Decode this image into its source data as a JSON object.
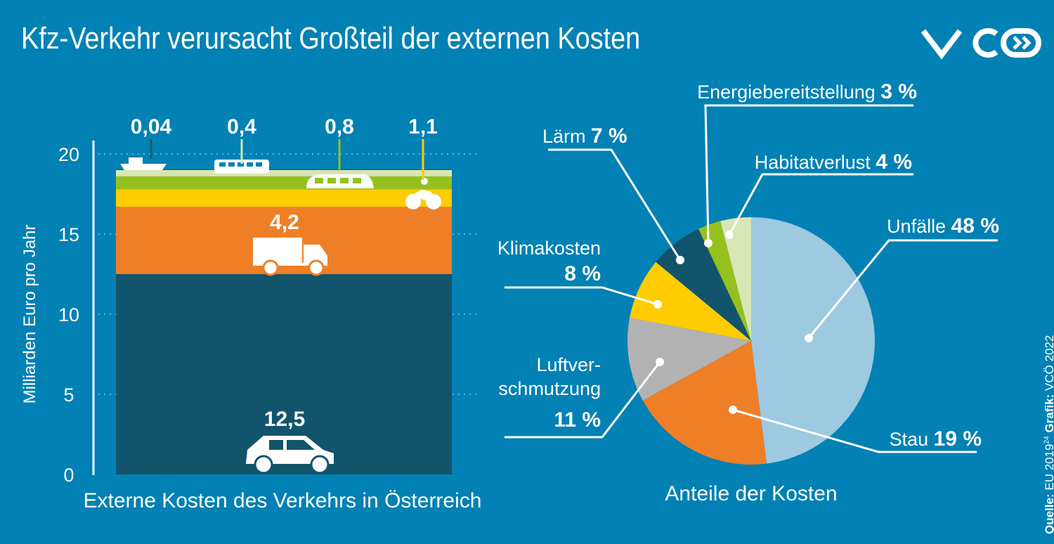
{
  "title": "Kfz-Verkehr verursacht Großteil der externen Kosten",
  "logo": "VCÖ",
  "source": {
    "label": "Quelle:",
    "text": "EU 2019",
    "sup": "24",
    "grafik_label": "Grafik:",
    "grafik": "VCÖ 2022"
  },
  "chart_data": [
    {
      "type": "bar",
      "stacked": true,
      "xlabel": "Externe Kosten des Verkehrs in Österreich",
      "ylabel": "Milliarden Euro pro Jahr",
      "ylim": [
        0,
        20
      ],
      "yticks": [
        0,
        5,
        10,
        15,
        20
      ],
      "grid": true,
      "segments": [
        {
          "mode": "Pkw",
          "icon": "car-icon",
          "value": 12.5,
          "label": "12,5",
          "color": "#12546b"
        },
        {
          "mode": "Lkw",
          "icon": "truck-icon",
          "value": 4.2,
          "label": "4,2",
          "color": "#ee7f27"
        },
        {
          "mode": "Motorrad",
          "icon": "motorcycle-icon",
          "value": 1.1,
          "label": "1,1",
          "color": "#ffcc00"
        },
        {
          "mode": "Bahn",
          "icon": "tram-icon",
          "value": 0.8,
          "label": "0,8",
          "color": "#95c11f"
        },
        {
          "mode": "Bus",
          "icon": "bus-icon",
          "value": 0.4,
          "label": "0,4",
          "color": "#d7e6b4"
        },
        {
          "mode": "Schiff",
          "icon": "ship-icon",
          "value": 0.04,
          "label": "0,04",
          "color": "#1b5a70"
        }
      ]
    },
    {
      "type": "pie",
      "title": "Anteile der Kosten",
      "slices": [
        {
          "name": "Unfälle",
          "value": 48,
          "label": "48 %",
          "color": "#9dc9e1"
        },
        {
          "name": "Stau",
          "value": 19,
          "label": "19 %",
          "color": "#ee7f27"
        },
        {
          "name": "Luftverschmutzung",
          "name_lines": [
            "Luftver-",
            "schmutzung"
          ],
          "value": 11,
          "label": "11 %",
          "color": "#b2b2b2"
        },
        {
          "name": "Klimakosten",
          "value": 8,
          "label": "8 %",
          "color": "#ffcc00"
        },
        {
          "name": "Lärm",
          "value": 7,
          "label": "7 %",
          "color": "#12546b"
        },
        {
          "name": "Energiebereitstellung",
          "value": 3,
          "label": "3 %",
          "color": "#95c11f"
        },
        {
          "name": "Habitatverlust",
          "value": 4,
          "label": "4 %",
          "color": "#d7e6b4"
        }
      ]
    }
  ]
}
